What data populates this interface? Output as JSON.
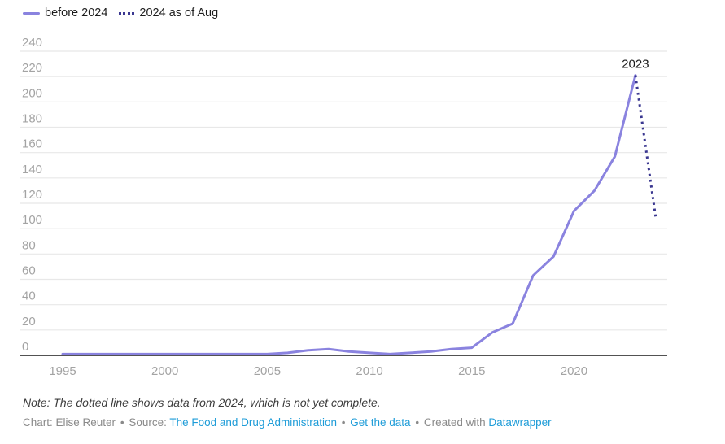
{
  "legend": {
    "items": [
      {
        "label": "before 2024",
        "style": "solid"
      },
      {
        "label": "2024 as of Aug",
        "style": "dotted"
      }
    ]
  },
  "chart_data": {
    "type": "line",
    "title": "",
    "xlabel": "",
    "ylabel": "",
    "xlim": [
      1995,
      2024
    ],
    "ylim": [
      0,
      240
    ],
    "x_ticks": [
      1995,
      2000,
      2005,
      2010,
      2015,
      2020
    ],
    "y_ticks": [
      0,
      20,
      40,
      60,
      80,
      100,
      120,
      140,
      160,
      180,
      200,
      220,
      240
    ],
    "grid": "horizontal",
    "legend_position": "top-left",
    "series": [
      {
        "name": "before 2024",
        "style": "solid",
        "color": "#8a83df",
        "x": [
          1995,
          1996,
          1997,
          1998,
          1999,
          2000,
          2001,
          2002,
          2003,
          2004,
          2005,
          2006,
          2007,
          2008,
          2009,
          2010,
          2011,
          2012,
          2013,
          2014,
          2015,
          2016,
          2017,
          2018,
          2019,
          2020,
          2021,
          2022,
          2023
        ],
        "values": [
          1,
          1,
          1,
          1,
          1,
          1,
          1,
          1,
          1,
          1,
          1,
          2,
          4,
          5,
          3,
          2,
          1,
          2,
          3,
          5,
          6,
          18,
          25,
          63,
          78,
          114,
          130,
          157,
          221
        ]
      },
      {
        "name": "2024 as of Aug",
        "style": "dotted",
        "color": "#3a3790",
        "x": [
          2023,
          2024
        ],
        "values": [
          221,
          108
        ]
      }
    ],
    "annotations": [
      {
        "text": "2023",
        "x": 2023,
        "y": 221
      }
    ]
  },
  "note": "Note: The dotted line shows data from 2024, which is not yet complete.",
  "footer": {
    "chart_credit": "Chart: Elise Reuter",
    "separator": "•",
    "source_label": "Source:",
    "source_link": "The Food and Drug Administration",
    "get_data_link": "Get the data",
    "created_with": "Created with",
    "tool_link": "Datawrapper"
  },
  "colors": {
    "solid_line": "#8a83df",
    "dotted_line": "#3a3790",
    "gridline": "#e8e8e8",
    "axis_line": "#191919",
    "tick_label": "#a3a3a3",
    "annotation_text": "#1b1b1b",
    "link_blue": "#1e9cd8"
  }
}
